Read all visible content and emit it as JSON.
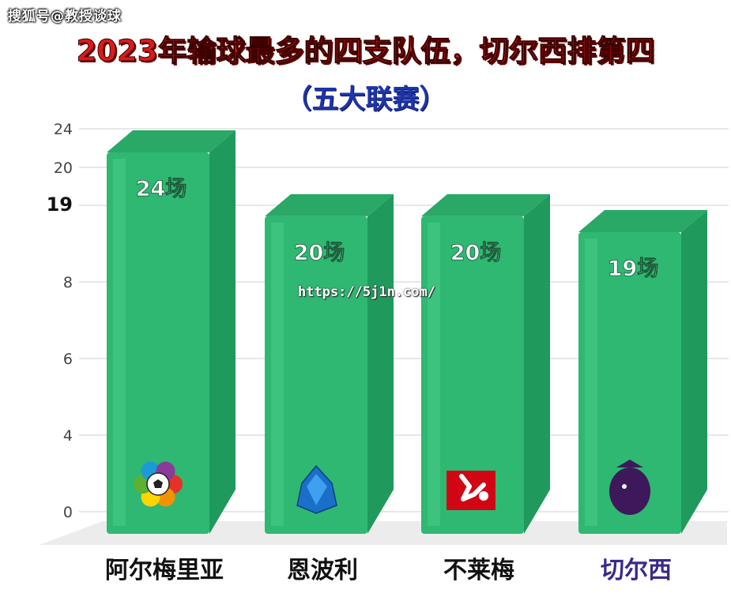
{
  "watermark": "搜狐号@教授谈球",
  "overlay_url": "https://5j1n.com/",
  "chart_data": {
    "type": "bar",
    "title": "2023年输球最多的四支队伍，切尔西排第四",
    "subtitle": "（五大联赛）",
    "categories": [
      "阿尔梅里亚",
      "恩波利",
      "不莱梅",
      "切尔西"
    ],
    "values": [
      24,
      20,
      20,
      19
    ],
    "data_labels": [
      "24场",
      "20场",
      "20场",
      "19场"
    ],
    "ytick_labels": [
      "0",
      "4",
      "6",
      "8",
      "19",
      "20",
      "24"
    ],
    "grid": true,
    "bar_color": "#2eb872",
    "category_label_colors": [
      "#111111",
      "#111111",
      "#111111",
      "#3a2a8a"
    ],
    "logo_icons": [
      "laliga-logo-icon",
      "serie-a-logo-icon",
      "bundesliga-logo-icon",
      "premier-league-lion-icon"
    ]
  }
}
